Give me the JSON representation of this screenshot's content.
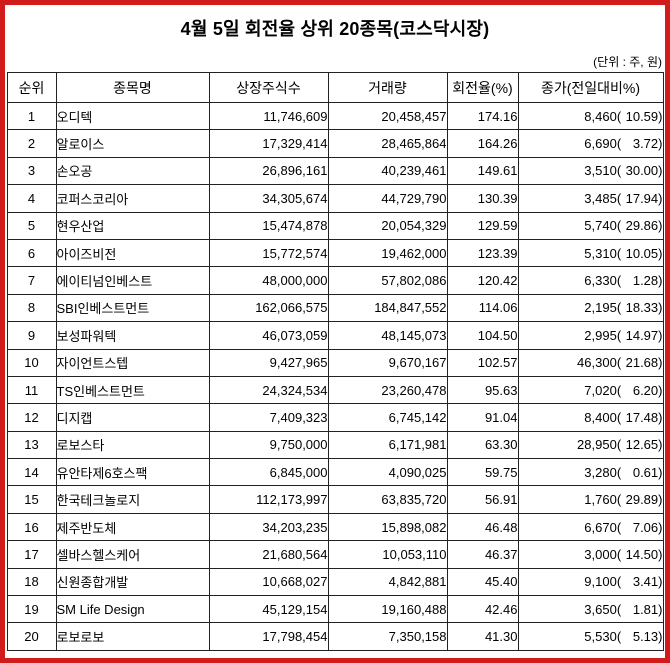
{
  "title": "4월 5일 회전율 상위 20종목(코스닥시장)",
  "unit_note": "(단위 : 주, 원)",
  "colors": {
    "frame_red": "#d21c1c",
    "grid_black": "#222222",
    "text_black": "#000000",
    "background": "#ffffff"
  },
  "table": {
    "headers": [
      "순위",
      "종목명",
      "상장주식수",
      "거래량",
      "회전율(%)",
      "종가(전일대비%)"
    ],
    "rows": [
      {
        "rank": "1",
        "name": "오디텍",
        "shares": "11,746,609",
        "volume": "20,458,457",
        "turnover": "174.16",
        "close": "8,460",
        "change_pct": "10.59"
      },
      {
        "rank": "2",
        "name": "알로이스",
        "shares": "17,329,414",
        "volume": "28,465,864",
        "turnover": "164.26",
        "close": "6,690",
        "change_pct": "3.72"
      },
      {
        "rank": "3",
        "name": "손오공",
        "shares": "26,896,161",
        "volume": "40,239,461",
        "turnover": "149.61",
        "close": "3,510",
        "change_pct": "30.00"
      },
      {
        "rank": "4",
        "name": "코퍼스코리아",
        "shares": "34,305,674",
        "volume": "44,729,790",
        "turnover": "130.39",
        "close": "3,485",
        "change_pct": "17.94"
      },
      {
        "rank": "5",
        "name": "현우산업",
        "shares": "15,474,878",
        "volume": "20,054,329",
        "turnover": "129.59",
        "close": "5,740",
        "change_pct": "29.86"
      },
      {
        "rank": "6",
        "name": "아이즈비전",
        "shares": "15,772,574",
        "volume": "19,462,000",
        "turnover": "123.39",
        "close": "5,310",
        "change_pct": "10.05"
      },
      {
        "rank": "7",
        "name": "에이티넘인베스트",
        "shares": "48,000,000",
        "volume": "57,802,086",
        "turnover": "120.42",
        "close": "6,330",
        "change_pct": "1.28"
      },
      {
        "rank": "8",
        "name": "SBI인베스트먼트",
        "shares": "162,066,575",
        "volume": "184,847,552",
        "turnover": "114.06",
        "close": "2,195",
        "change_pct": "18.33"
      },
      {
        "rank": "9",
        "name": "보성파워텍",
        "shares": "46,073,059",
        "volume": "48,145,073",
        "turnover": "104.50",
        "close": "2,995",
        "change_pct": "14.97"
      },
      {
        "rank": "10",
        "name": "자이언트스텝",
        "shares": "9,427,965",
        "volume": "9,670,167",
        "turnover": "102.57",
        "close": "46,300",
        "change_pct": "21.68"
      },
      {
        "rank": "11",
        "name": "TS인베스트먼트",
        "shares": "24,324,534",
        "volume": "23,260,478",
        "turnover": "95.63",
        "close": "7,020",
        "change_pct": "6.20"
      },
      {
        "rank": "12",
        "name": "디지캡",
        "shares": "7,409,323",
        "volume": "6,745,142",
        "turnover": "91.04",
        "close": "8,400",
        "change_pct": "17.48"
      },
      {
        "rank": "13",
        "name": "로보스타",
        "shares": "9,750,000",
        "volume": "6,171,981",
        "turnover": "63.30",
        "close": "28,950",
        "change_pct": "12.65"
      },
      {
        "rank": "14",
        "name": "유안타제6호스팩",
        "shares": "6,845,000",
        "volume": "4,090,025",
        "turnover": "59.75",
        "close": "3,280",
        "change_pct": "0.61"
      },
      {
        "rank": "15",
        "name": "한국테크놀로지",
        "shares": "112,173,997",
        "volume": "63,835,720",
        "turnover": "56.91",
        "close": "1,760",
        "change_pct": "29.89"
      },
      {
        "rank": "16",
        "name": "제주반도체",
        "shares": "34,203,235",
        "volume": "15,898,082",
        "turnover": "46.48",
        "close": "6,670",
        "change_pct": "7.06"
      },
      {
        "rank": "17",
        "name": "셀바스헬스케어",
        "shares": "21,680,564",
        "volume": "10,053,110",
        "turnover": "46.37",
        "close": "3,000",
        "change_pct": "14.50"
      },
      {
        "rank": "18",
        "name": "신원종합개발",
        "shares": "10,668,027",
        "volume": "4,842,881",
        "turnover": "45.40",
        "close": "9,100",
        "change_pct": "3.41"
      },
      {
        "rank": "19",
        "name": "SM Life Design",
        "shares": "45,129,154",
        "volume": "19,160,488",
        "turnover": "42.46",
        "close": "3,650",
        "change_pct": "1.81"
      },
      {
        "rank": "20",
        "name": "로보로보",
        "shares": "17,798,454",
        "volume": "7,350,158",
        "turnover": "41.30",
        "close": "5,530",
        "change_pct": "5.13"
      }
    ]
  },
  "chart_data": {
    "type": "table",
    "title": "4월 5일 회전율 상위 20종목(코스닥시장)",
    "unit": "주, 원",
    "columns": [
      "순위",
      "종목명",
      "상장주식수",
      "거래량",
      "회전율(%)",
      "종가",
      "전일대비(%)"
    ],
    "rows": [
      [
        1,
        "오디텍",
        11746609,
        20458457,
        174.16,
        8460,
        10.59
      ],
      [
        2,
        "알로이스",
        17329414,
        28465864,
        164.26,
        6690,
        3.72
      ],
      [
        3,
        "손오공",
        26896161,
        40239461,
        149.61,
        3510,
        30.0
      ],
      [
        4,
        "코퍼스코리아",
        34305674,
        44729790,
        130.39,
        3485,
        17.94
      ],
      [
        5,
        "현우산업",
        15474878,
        20054329,
        129.59,
        5740,
        29.86
      ],
      [
        6,
        "아이즈비전",
        15772574,
        19462000,
        123.39,
        5310,
        10.05
      ],
      [
        7,
        "에이티넘인베스트",
        48000000,
        57802086,
        120.42,
        6330,
        1.28
      ],
      [
        8,
        "SBI인베스트먼트",
        162066575,
        184847552,
        114.06,
        2195,
        18.33
      ],
      [
        9,
        "보성파워텍",
        46073059,
        48145073,
        104.5,
        2995,
        14.97
      ],
      [
        10,
        "자이언트스텝",
        9427965,
        9670167,
        102.57,
        46300,
        21.68
      ],
      [
        11,
        "TS인베스트먼트",
        24324534,
        23260478,
        95.63,
        7020,
        6.2
      ],
      [
        12,
        "디지캡",
        7409323,
        6745142,
        91.04,
        8400,
        17.48
      ],
      [
        13,
        "로보스타",
        9750000,
        6171981,
        63.3,
        28950,
        12.65
      ],
      [
        14,
        "유안타제6호스팩",
        6845000,
        4090025,
        59.75,
        3280,
        0.61
      ],
      [
        15,
        "한국테크놀로지",
        112173997,
        63835720,
        56.91,
        1760,
        29.89
      ],
      [
        16,
        "제주반도체",
        34203235,
        15898082,
        46.48,
        6670,
        7.06
      ],
      [
        17,
        "셀바스헬스케어",
        21680564,
        10053110,
        46.37,
        3000,
        14.5
      ],
      [
        18,
        "신원종합개발",
        10668027,
        4842881,
        45.4,
        9100,
        3.41
      ],
      [
        19,
        "SM Life Design",
        45129154,
        19160488,
        42.46,
        3650,
        1.81
      ],
      [
        20,
        "로보로보",
        17798454,
        7350158,
        41.3,
        5530,
        5.13
      ]
    ]
  }
}
